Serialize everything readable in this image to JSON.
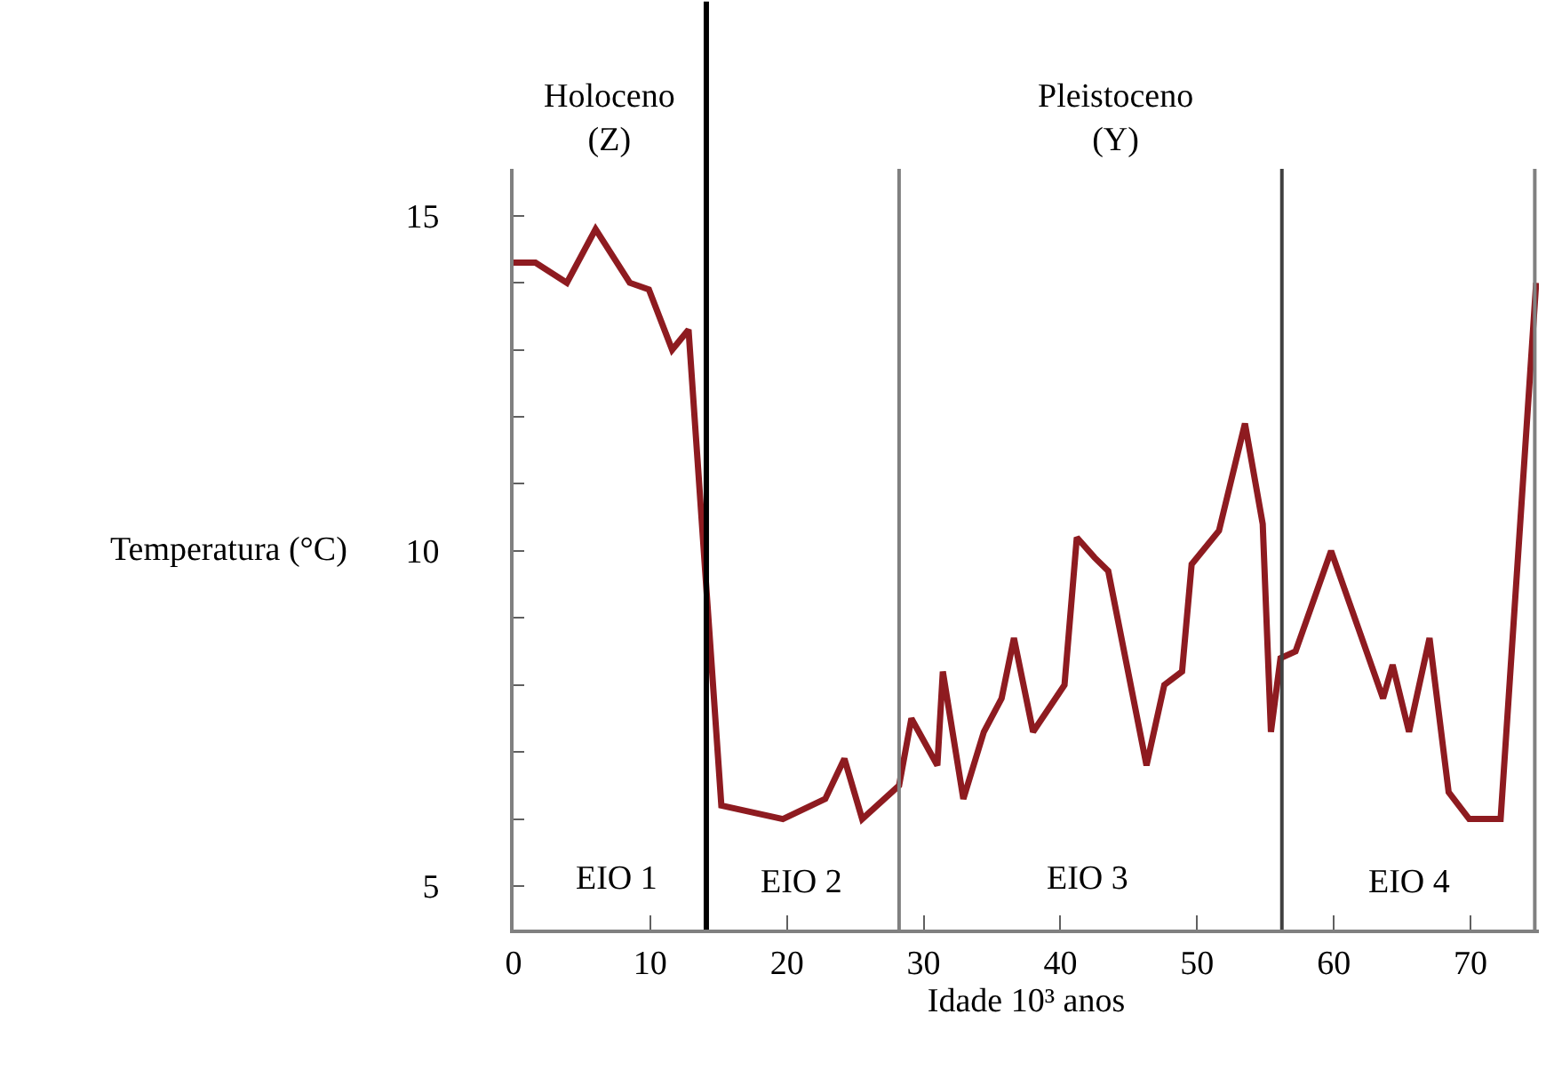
{
  "chart_data": {
    "type": "line",
    "xlabel": "Idade 10³ anos",
    "ylabel": "Temperatura (°C)",
    "x": [
      0,
      1.6,
      3.9,
      6.0,
      8.5,
      9.9,
      11.6,
      12.8,
      15.2,
      19.7,
      22.8,
      24.2,
      25.5,
      28.2,
      29.1,
      31.0,
      31.4,
      32.9,
      34.4,
      35.7,
      36.6,
      38.0,
      40.3,
      41.2,
      42.5,
      43.5,
      46.3,
      47.6,
      48.9,
      49.6,
      51.6,
      53.5,
      54.8,
      55.4,
      56.1,
      57.2,
      59.8,
      63.6,
      64.3,
      65.5,
      67.0,
      68.4,
      69.9,
      72.2,
      74.8
    ],
    "series": [
      {
        "color": "#8e1b20",
        "values": [
          14.3,
          14.3,
          14.0,
          14.8,
          14.0,
          13.9,
          13.0,
          13.3,
          6.2,
          6.0,
          6.3,
          6.9,
          6.0,
          6.5,
          7.5,
          6.8,
          8.2,
          6.3,
          7.3,
          7.8,
          8.7,
          7.3,
          8.0,
          10.2,
          9.9,
          9.7,
          6.8,
          8.0,
          8.2,
          9.8,
          10.3,
          11.9,
          10.4,
          7.3,
          8.4,
          8.5,
          10.0,
          7.8,
          8.3,
          7.3,
          8.7,
          6.4,
          6.0,
          6.0,
          14.0
        ]
      }
    ],
    "xlim": [
      0,
      75
    ],
    "ylim": [
      4.35,
      15.7
    ],
    "xticks": [
      0,
      10,
      20,
      30,
      40,
      50,
      60,
      70
    ],
    "yticks": [
      5,
      {
        "value": 6,
        "label": null
      },
      {
        "value": 7,
        "label": null
      },
      {
        "value": 8,
        "label": null
      },
      {
        "value": 9,
        "label": null
      },
      10,
      {
        "value": 11,
        "label": null
      },
      {
        "value": 12,
        "label": null
      },
      {
        "value": 13,
        "label": null
      },
      {
        "value": 14,
        "label": null
      },
      15
    ],
    "ref_lines": [
      {
        "axis": "x",
        "value": 14.1,
        "color": "#000000"
      },
      {
        "axis": "x",
        "value": 28.2,
        "color": "#808080"
      },
      {
        "axis": "x",
        "value": 56.2,
        "color": "#404040"
      },
      {
        "axis": "x",
        "value": 74.7,
        "color": "#808080"
      }
    ],
    "annotations": [
      "Holoceno\n(Z)",
      "Pleistoceno\n(Y)",
      "EIO 1",
      "EIO 2",
      "EIO 3",
      "EIO 4"
    ],
    "marker": "none",
    "line_style": "solid"
  }
}
